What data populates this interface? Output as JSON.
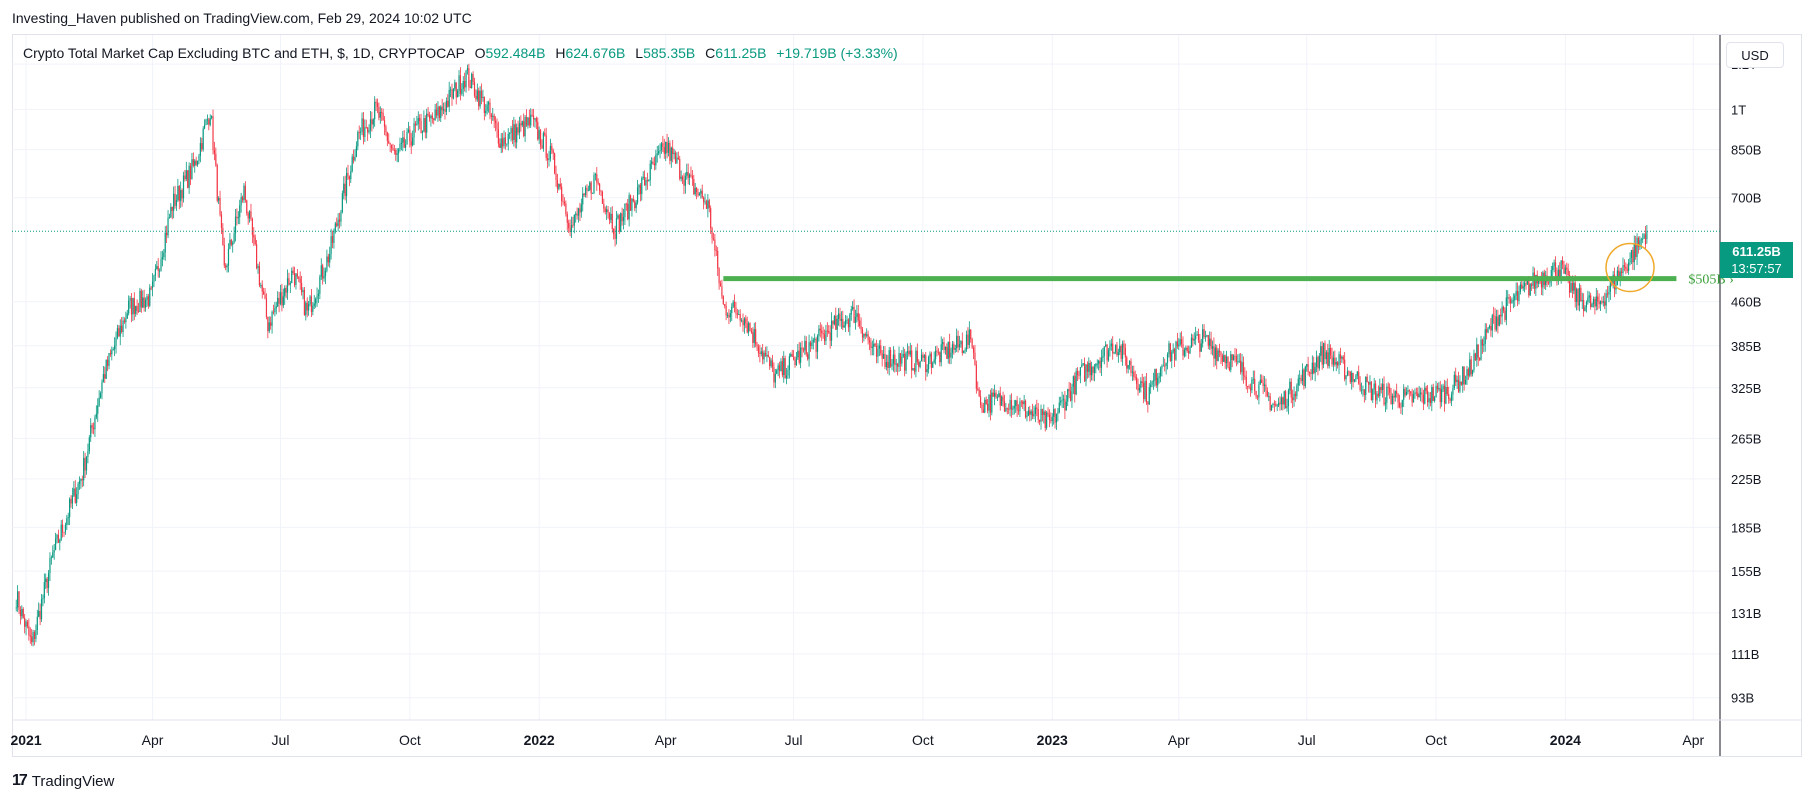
{
  "header": {
    "publisher_line": "Investing_Haven published on TradingView.com, Feb 29, 2024 10:02 UTC"
  },
  "legend": {
    "symbol": "Crypto Total Market Cap Excluding BTC and ETH, $, 1D, CRYPTOCAP",
    "open_key": "O",
    "open": "592.484B",
    "high_key": "H",
    "high": "624.676B",
    "low_key": "L",
    "low": "585.35B",
    "close_key": "C",
    "close": "611.25B",
    "change": "+19.719B (+3.33%)"
  },
  "currency_button": "USD",
  "price_tag": {
    "price": "611.25B",
    "countdown": "13:57:57"
  },
  "footer": {
    "logo_mark": "17",
    "logo_text": "TradingView"
  },
  "colors": {
    "up": "#089981",
    "down": "#f23645",
    "level_line": "#4caf50",
    "circle": "#f0a92b",
    "grid": "#f0f3fa",
    "price_line": "#089981"
  },
  "chart_data": {
    "type": "candlestick",
    "title": "Crypto Total Market Cap Excluding BTC and ETH",
    "y_scale": "log",
    "y_unit": "USD",
    "x_range": [
      "2020-12-22",
      "2024-04-20"
    ],
    "y_range_billions": [
      85,
      1350
    ],
    "y_ticks": [
      {
        "label": "1.2T",
        "value": 1200
      },
      {
        "label": "1T",
        "value": 1000
      },
      {
        "label": "850B",
        "value": 850
      },
      {
        "label": "700B",
        "value": 700
      },
      {
        "label": "460B",
        "value": 460
      },
      {
        "label": "385B",
        "value": 385
      },
      {
        "label": "325B",
        "value": 325
      },
      {
        "label": "265B",
        "value": 265
      },
      {
        "label": "225B",
        "value": 225
      },
      {
        "label": "185B",
        "value": 185
      },
      {
        "label": "155B",
        "value": 155
      },
      {
        "label": "131B",
        "value": 131
      },
      {
        "label": "111B",
        "value": 111
      },
      {
        "label": "93B",
        "value": 93
      }
    ],
    "x_ticks": [
      {
        "label": "2021",
        "date": "2021-01-01",
        "year": true
      },
      {
        "label": "Apr",
        "date": "2021-04-01"
      },
      {
        "label": "Jul",
        "date": "2021-07-01"
      },
      {
        "label": "Oct",
        "date": "2021-10-01"
      },
      {
        "label": "2022",
        "date": "2022-01-01",
        "year": true
      },
      {
        "label": "Apr",
        "date": "2022-04-01"
      },
      {
        "label": "Jul",
        "date": "2022-07-01"
      },
      {
        "label": "Oct",
        "date": "2022-10-01"
      },
      {
        "label": "2023",
        "date": "2023-01-01",
        "year": true
      },
      {
        "label": "Apr",
        "date": "2023-04-01"
      },
      {
        "label": "Jul",
        "date": "2023-07-01"
      },
      {
        "label": "Oct",
        "date": "2023-10-01"
      },
      {
        "label": "2024",
        "date": "2024-01-01",
        "year": true
      },
      {
        "label": "Apr",
        "date": "2024-04-01"
      }
    ],
    "price_path_billions": [
      [
        "2020-12-25",
        140
      ],
      [
        "2021-01-05",
        115
      ],
      [
        "2021-01-20",
        165
      ],
      [
        "2021-02-10",
        230
      ],
      [
        "2021-02-25",
        340
      ],
      [
        "2021-03-15",
        450
      ],
      [
        "2021-03-31",
        470
      ],
      [
        "2021-04-15",
        680
      ],
      [
        "2021-05-01",
        800
      ],
      [
        "2021-05-12",
        1000
      ],
      [
        "2021-05-22",
        520
      ],
      [
        "2021-06-05",
        720
      ],
      [
        "2021-06-22",
        420
      ],
      [
        "2021-07-10",
        520
      ],
      [
        "2021-07-20",
        440
      ],
      [
        "2021-08-05",
        560
      ],
      [
        "2021-08-25",
        900
      ],
      [
        "2021-09-07",
        1000
      ],
      [
        "2021-09-21",
        820
      ],
      [
        "2021-10-05",
        920
      ],
      [
        "2021-10-20",
        970
      ],
      [
        "2021-11-10",
        1150
      ],
      [
        "2021-11-25",
        1000
      ],
      [
        "2021-12-05",
        880
      ],
      [
        "2021-12-27",
        950
      ],
      [
        "2022-01-10",
        820
      ],
      [
        "2022-01-24",
        620
      ],
      [
        "2022-02-10",
        760
      ],
      [
        "2022-02-24",
        620
      ],
      [
        "2022-03-10",
        700
      ],
      [
        "2022-04-01",
        860
      ],
      [
        "2022-04-15",
        760
      ],
      [
        "2022-05-01",
        680
      ],
      [
        "2022-05-12",
        450
      ],
      [
        "2022-05-25",
        440
      ],
      [
        "2022-06-18",
        340
      ],
      [
        "2022-07-05",
        370
      ],
      [
        "2022-08-01",
        420
      ],
      [
        "2022-08-14",
        440
      ],
      [
        "2022-08-28",
        370
      ],
      [
        "2022-10-01",
        360
      ],
      [
        "2022-11-05",
        395
      ],
      [
        "2022-11-10",
        305
      ],
      [
        "2022-12-01",
        310
      ],
      [
        "2022-12-30",
        280
      ],
      [
        "2023-01-20",
        340
      ],
      [
        "2023-02-15",
        390
      ],
      [
        "2023-03-10",
        315
      ],
      [
        "2023-03-22",
        370
      ],
      [
        "2023-04-18",
        395
      ],
      [
        "2023-05-10",
        360
      ],
      [
        "2023-06-10",
        300
      ],
      [
        "2023-07-13",
        375
      ],
      [
        "2023-08-17",
        320
      ],
      [
        "2023-09-11",
        310
      ],
      [
        "2023-10-10",
        320
      ],
      [
        "2023-10-25",
        350
      ],
      [
        "2023-11-12",
        430
      ],
      [
        "2023-12-10",
        500
      ],
      [
        "2023-12-28",
        530
      ],
      [
        "2024-01-08",
        470
      ],
      [
        "2024-01-23",
        450
      ],
      [
        "2024-02-10",
        520
      ],
      [
        "2024-02-28",
        611.25
      ]
    ],
    "annotations": [
      {
        "type": "horizontal_level",
        "value": 505,
        "label": "$505B",
        "from": "2022-05-12",
        "to": "2024-03-20"
      },
      {
        "type": "circle",
        "center_date": "2024-02-16",
        "center_value": 528
      },
      {
        "type": "last_price_line",
        "value": 611.25
      }
    ]
  }
}
